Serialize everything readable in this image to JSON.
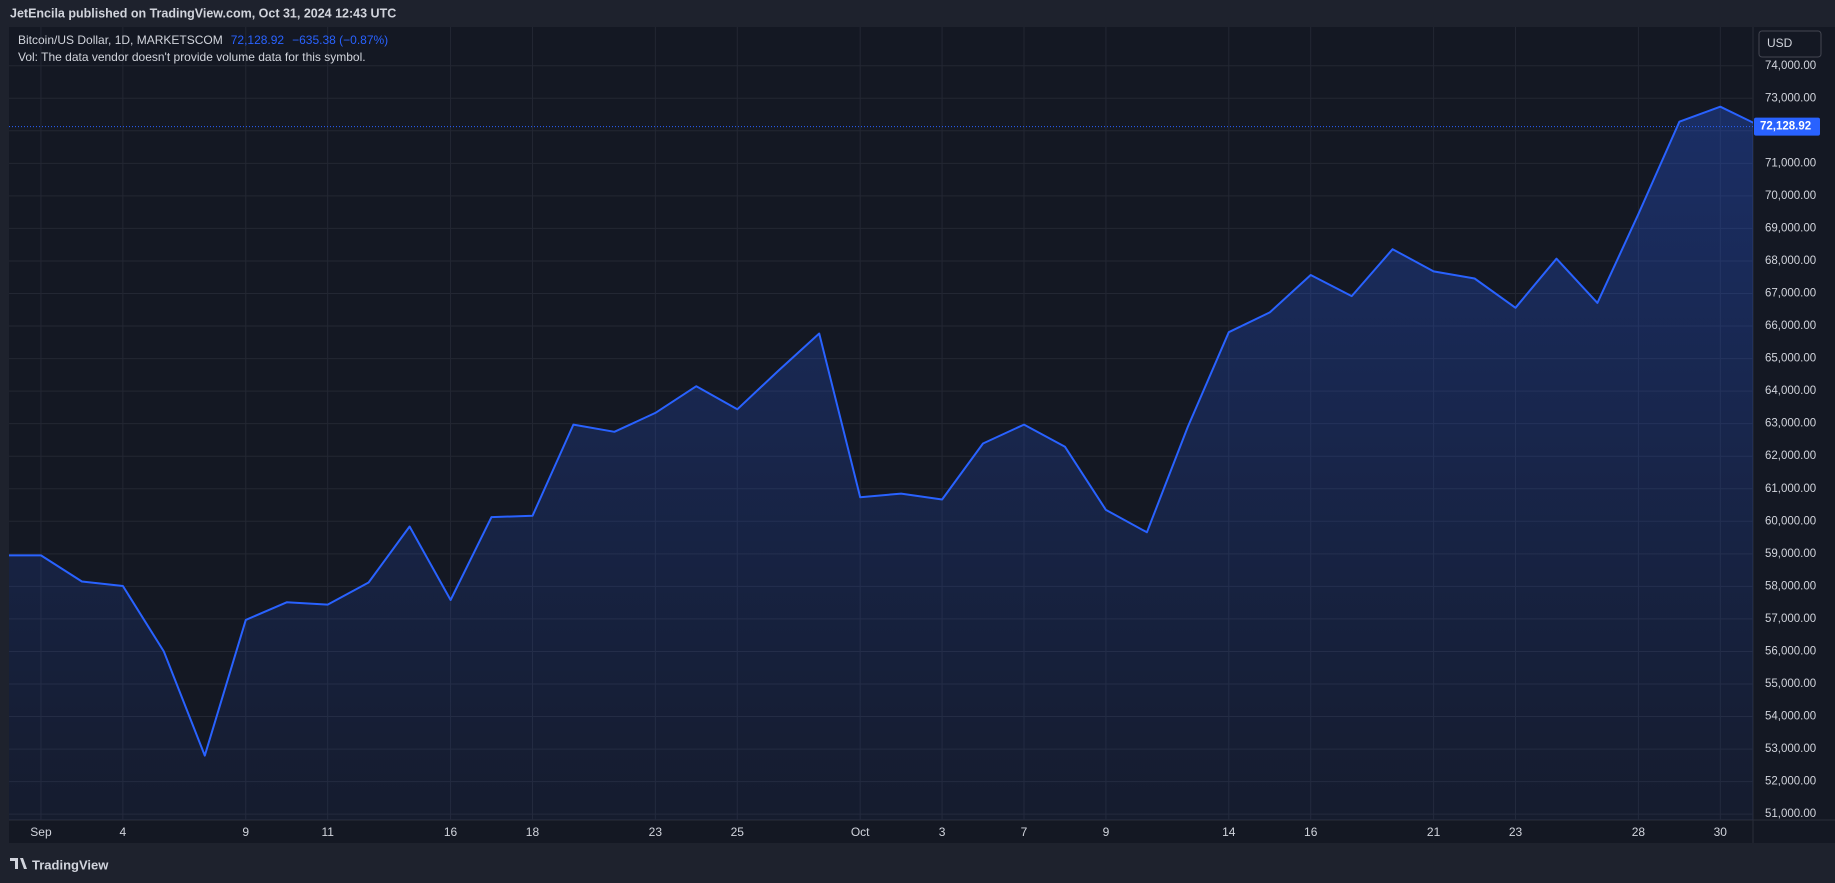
{
  "header": "JetEncila published on TradingView.com, Oct 31, 2024 12:43 UTC",
  "legend": {
    "change": "−635.38 (−0.87%)",
    "volume_note": "Vol: The data vendor doesn't provide volume data for this symbol."
  },
  "currency": "USD",
  "footer": "TradingView",
  "chart_data": {
    "type": "area",
    "categories": [
      null,
      "Sep",
      null,
      "4",
      null,
      null,
      "9",
      null,
      "11",
      null,
      null,
      "16",
      null,
      "18",
      null,
      null,
      "23",
      null,
      "25",
      null,
      null,
      "Oct",
      null,
      "3",
      null,
      "7",
      null,
      "9",
      null,
      null,
      "14",
      null,
      "16",
      null,
      null,
      "21",
      null,
      "23",
      null,
      null,
      "28",
      null,
      "30",
      null
    ],
    "series": [
      {
        "name": "Bitcoin/US Dollar, 1D, MARKETSCOM",
        "color": "#2962ff",
        "values": [
          58950,
          58950,
          58150,
          58010,
          56000,
          52800,
          56970,
          57510,
          57440,
          58120,
          59840,
          57580,
          60130,
          60170,
          62970,
          62750,
          63330,
          64150,
          63440,
          64620,
          65770,
          60740,
          60850,
          60670,
          62390,
          62970,
          62290,
          60350,
          59660,
          62900,
          65810,
          66420,
          67570,
          66920,
          68360,
          67680,
          67460,
          66560,
          68070,
          66710,
          69440,
          72280,
          72740,
          72128.92
        ],
        "value_labels": [
          null,
          null,
          null,
          null,
          null,
          null,
          null,
          null,
          null,
          null,
          null,
          null,
          null,
          null,
          null,
          null,
          null,
          null,
          null,
          null,
          null,
          null,
          null,
          null,
          null,
          null,
          null,
          null,
          null,
          null,
          null,
          null,
          null,
          null,
          null,
          null,
          null,
          null,
          null,
          null,
          null,
          null,
          null,
          "72,128.92"
        ]
      }
    ],
    "ylim": [
      50820,
      75190
    ],
    "yticks": [
      {
        "value": 51000,
        "label": "51,000.00"
      },
      {
        "value": 52000,
        "label": "52,000.00"
      },
      {
        "value": 53000,
        "label": "53,000.00"
      },
      {
        "value": 54000,
        "label": "54,000.00"
      },
      {
        "value": 55000,
        "label": "55,000.00"
      },
      {
        "value": 56000,
        "label": "56,000.00"
      },
      {
        "value": 57000,
        "label": "57,000.00"
      },
      {
        "value": 58000,
        "label": "58,000.00"
      },
      {
        "value": 59000,
        "label": "59,000.00"
      },
      {
        "value": 60000,
        "label": "60,000.00"
      },
      {
        "value": 61000,
        "label": "61,000.00"
      },
      {
        "value": 62000,
        "label": "62,000.00"
      },
      {
        "value": 63000,
        "label": "63,000.00"
      },
      {
        "value": 64000,
        "label": "64,000.00"
      },
      {
        "value": 65000,
        "label": "65,000.00"
      },
      {
        "value": 66000,
        "label": "66,000.00"
      },
      {
        "value": 67000,
        "label": "67,000.00"
      },
      {
        "value": 68000,
        "label": "68,000.00"
      },
      {
        "value": 69000,
        "label": "69,000.00"
      },
      {
        "value": 70000,
        "label": "70,000.00"
      },
      {
        "value": 71000,
        "label": "71,000.00"
      },
      {
        "value": 72000,
        "label": "72,000.00"
      },
      {
        "value": 73000,
        "label": "73,000.00"
      },
      {
        "value": 74000,
        "label": "74,000.00"
      }
    ],
    "grid": true
  }
}
